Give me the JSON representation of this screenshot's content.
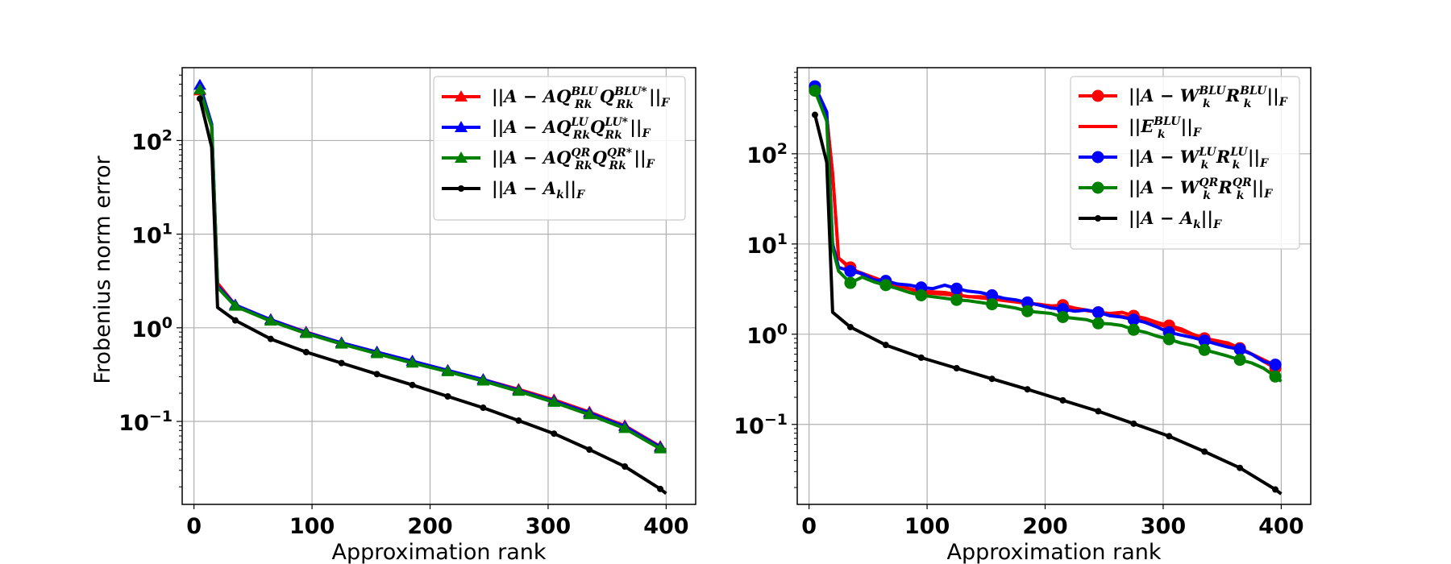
{
  "chart_data": [
    {
      "type": "line",
      "ylabel": "Frobenius norm error",
      "xlabel": "Approximation rank",
      "y_scale": "log",
      "grid": true,
      "legend_position": "top-right",
      "xlim": [
        -10,
        425
      ],
      "ylim": [
        0.013,
        600
      ],
      "xticks": [
        0,
        100,
        200,
        300,
        400
      ],
      "yticks": [
        {
          "value": 100,
          "base": "10",
          "exp": "2"
        },
        {
          "value": 10,
          "base": "10",
          "exp": "1"
        },
        {
          "value": 1,
          "base": "10",
          "exp": "0"
        },
        {
          "value": 0.1,
          "base": "10",
          "exp": "−1"
        }
      ],
      "series": [
        {
          "name": "||A − AQ_{R_k}^{BLU}Q_{R_k}^{BLU*}||_F",
          "color": "#ff0000",
          "marker": "triangle",
          "x": [
            5,
            15,
            20,
            35,
            65,
            95,
            125,
            155,
            185,
            215,
            245,
            275,
            305,
            335,
            365,
            395
          ],
          "y": [
            340,
            140,
            3.0,
            1.75,
            1.22,
            0.9,
            0.69,
            0.55,
            0.44,
            0.35,
            0.28,
            0.22,
            0.17,
            0.126,
            0.09,
            0.054
          ],
          "legend": {
            "base": "||A − AQ",
            "sup1": "BLU",
            "sub1": "R",
            "subsub1": "k",
            "mid": "Q",
            "sup2": "BLU*",
            "sub2": "R",
            "subsub2": "k",
            "tail": "||",
            "tailsub": "F"
          }
        },
        {
          "name": "||A − AQ_{R_k}^{LU}Q_{R_k}^{LU*}||_F",
          "color": "#0000ff",
          "marker": "triangle",
          "x": [
            5,
            15,
            20,
            35,
            65,
            95,
            125,
            155,
            185,
            215,
            245,
            275,
            305,
            335,
            365,
            395
          ],
          "y": [
            390,
            150,
            2.8,
            1.75,
            1.22,
            0.89,
            0.69,
            0.55,
            0.44,
            0.35,
            0.28,
            0.215,
            0.165,
            0.123,
            0.088,
            0.053
          ],
          "legend": {
            "base": "||A − AQ",
            "sup1": "LU",
            "sub1": "R",
            "subsub1": "k",
            "mid": "Q",
            "sup2": "LU*",
            "sub2": "R",
            "subsub2": "k",
            "tail": "||",
            "tailsub": "F"
          }
        },
        {
          "name": "||A − AQ_{R_k}^{QR}Q_{R_k}^{QR*}||_F",
          "color": "#008000",
          "marker": "triangle",
          "x": [
            5,
            15,
            20,
            35,
            65,
            95,
            125,
            155,
            185,
            215,
            245,
            275,
            305,
            335,
            365,
            395,
            400
          ],
          "y": [
            350,
            140,
            2.7,
            1.7,
            1.18,
            0.87,
            0.67,
            0.53,
            0.42,
            0.34,
            0.27,
            0.21,
            0.16,
            0.118,
            0.084,
            0.051,
            0.05
          ],
          "legend": {
            "base": "||A − AQ",
            "sup1": "QR",
            "sub1": "R",
            "subsub1": "k",
            "mid": "Q",
            "sup2": "QR*",
            "sub2": "R",
            "subsub2": "k",
            "tail": "||",
            "tailsub": "F"
          }
        },
        {
          "name": "||A − A_k||_F",
          "color": "#000000",
          "marker": "dot",
          "x": [
            5,
            15,
            20,
            35,
            65,
            95,
            125,
            155,
            185,
            215,
            245,
            275,
            305,
            335,
            365,
            395,
            400
          ],
          "y": [
            280,
            85,
            1.65,
            1.2,
            0.76,
            0.55,
            0.42,
            0.32,
            0.245,
            0.185,
            0.14,
            0.102,
            0.074,
            0.05,
            0.033,
            0.019,
            0.017
          ],
          "legend": {
            "base": "||A − A",
            "sub": "k",
            "tail": "||",
            "tailsub": "F"
          }
        }
      ]
    },
    {
      "type": "line",
      "xlabel": "Approximation rank",
      "y_scale": "log",
      "grid": true,
      "legend_position": "top-right",
      "xlim": [
        -10,
        425
      ],
      "ylim": [
        0.013,
        900
      ],
      "xticks": [
        0,
        100,
        200,
        300,
        400
      ],
      "yticks": [
        {
          "value": 100,
          "base": "10",
          "exp": "2"
        },
        {
          "value": 10,
          "base": "10",
          "exp": "1"
        },
        {
          "value": 1,
          "base": "10",
          "exp": "0"
        },
        {
          "value": 0.1,
          "base": "10",
          "exp": "−1"
        }
      ],
      "series": [
        {
          "name": "||A − W_k^{BLU}R_k^{BLU}||_F",
          "color": "#ff0000",
          "marker": "circle",
          "x": [
            5,
            15,
            20,
            25,
            35,
            45,
            55,
            65,
            75,
            85,
            95,
            105,
            115,
            125,
            135,
            145,
            155,
            165,
            175,
            185,
            195,
            205,
            215,
            225,
            235,
            245,
            255,
            265,
            275,
            285,
            295,
            305,
            315,
            325,
            335,
            345,
            355,
            365,
            375,
            385,
            395
          ],
          "y": [
            520,
            260,
            60,
            7.0,
            5.5,
            4.6,
            4.0,
            3.7,
            3.5,
            3.2,
            3.0,
            2.95,
            2.9,
            2.75,
            2.6,
            2.6,
            2.55,
            2.45,
            2.4,
            2.2,
            2.15,
            2.05,
            2.1,
            1.95,
            1.85,
            1.75,
            1.7,
            1.75,
            1.6,
            1.5,
            1.35,
            1.25,
            1.15,
            1.0,
            0.9,
            0.85,
            0.8,
            0.7,
            0.6,
            0.5,
            0.42
          ],
          "legend": {
            "base": "||A − W",
            "sup1": "BLU",
            "sub1": "k",
            "mid": "R",
            "sup2": "BLU",
            "sub2": "k",
            "tail": "||",
            "tailsub": "F"
          }
        },
        {
          "name": "||E_k^{BLU}||_F",
          "color": "#ff0000",
          "marker": "none",
          "x": [
            5,
            15,
            20,
            25,
            35,
            65,
            95,
            125,
            155,
            185,
            215,
            245,
            275,
            305,
            335,
            365,
            395
          ],
          "y": [
            520,
            260,
            60,
            7.0,
            5.3,
            3.8,
            2.9,
            2.7,
            2.45,
            2.2,
            2.0,
            1.75,
            1.5,
            1.2,
            0.9,
            0.7,
            0.45
          ],
          "legend": {
            "base": "||E",
            "sup1": "BLU",
            "sub1": "k",
            "tail": "||",
            "tailsub": "F"
          }
        },
        {
          "name": "||A − W_k^{LU}R_k^{LU}||_F",
          "color": "#0000ff",
          "marker": "circle",
          "x": [
            5,
            15,
            20,
            25,
            35,
            45,
            55,
            65,
            75,
            85,
            95,
            105,
            115,
            125,
            135,
            145,
            155,
            165,
            175,
            185,
            195,
            205,
            215,
            225,
            235,
            245,
            255,
            265,
            275,
            285,
            295,
            305,
            315,
            325,
            335,
            345,
            355,
            365,
            375,
            385,
            395
          ],
          "y": [
            560,
            290,
            10,
            5.5,
            5.0,
            4.7,
            4.0,
            3.9,
            3.6,
            3.5,
            3.3,
            3.2,
            3.5,
            3.2,
            3.0,
            2.9,
            2.7,
            2.5,
            2.4,
            2.25,
            2.1,
            1.95,
            1.9,
            1.8,
            1.85,
            1.75,
            1.6,
            1.55,
            1.45,
            1.35,
            1.2,
            1.05,
            0.98,
            0.92,
            0.85,
            0.78,
            0.72,
            0.68,
            0.6,
            0.5,
            0.46
          ],
          "legend": {
            "base": "||A − W",
            "sup1": "LU",
            "sub1": "k",
            "mid": "R",
            "sup2": "LU",
            "sub2": "k",
            "tail": "||",
            "tailsub": "F"
          }
        },
        {
          "name": "||A − W_k^{QR}R_k^{QR}||_F",
          "color": "#008000",
          "marker": "circle",
          "x": [
            5,
            15,
            20,
            25,
            35,
            45,
            55,
            65,
            75,
            85,
            95,
            105,
            115,
            125,
            135,
            145,
            155,
            165,
            175,
            185,
            195,
            205,
            215,
            225,
            235,
            245,
            255,
            265,
            275,
            285,
            295,
            305,
            315,
            325,
            335,
            345,
            355,
            365,
            375,
            385,
            395,
            400
          ],
          "y": [
            500,
            230,
            9.0,
            5.0,
            3.7,
            4.3,
            3.8,
            3.5,
            3.2,
            2.9,
            2.7,
            2.6,
            2.5,
            2.4,
            2.35,
            2.25,
            2.15,
            2.05,
            1.95,
            1.8,
            1.75,
            1.7,
            1.55,
            1.5,
            1.45,
            1.32,
            1.3,
            1.25,
            1.12,
            1.05,
            0.95,
            0.88,
            0.8,
            0.75,
            0.67,
            0.62,
            0.57,
            0.52,
            0.48,
            0.42,
            0.34,
            0.3
          ],
          "legend": {
            "base": "||A − W",
            "sup1": "QR",
            "sub1": "k",
            "mid": "R",
            "sup2": "QR",
            "sub2": "k",
            "tail": "||",
            "tailsub": "F"
          }
        },
        {
          "name": "||A − A_k||_F",
          "color": "#000000",
          "marker": "dot",
          "x": [
            5,
            15,
            20,
            35,
            65,
            95,
            125,
            155,
            185,
            215,
            245,
            275,
            305,
            335,
            365,
            395,
            400
          ],
          "y": [
            270,
            80,
            1.75,
            1.2,
            0.76,
            0.55,
            0.42,
            0.32,
            0.245,
            0.185,
            0.14,
            0.102,
            0.074,
            0.05,
            0.033,
            0.019,
            0.017
          ],
          "legend": {
            "base": "||A − A",
            "sub": "k",
            "tail": "||",
            "tailsub": "F"
          }
        }
      ]
    }
  ]
}
